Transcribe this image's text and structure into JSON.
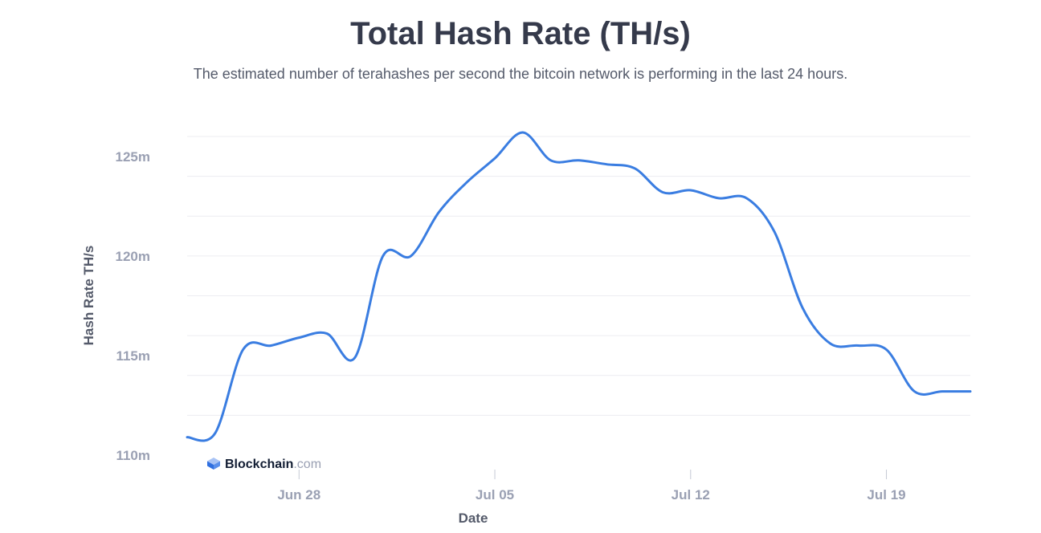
{
  "header": {
    "title": "Total Hash Rate (TH/s)",
    "subtitle": "The estimated number of terahashes per second the bitcoin network is performing in the last 24 hours."
  },
  "brand": {
    "name": "Blockchain",
    "suffix": ".com"
  },
  "colors": {
    "line": "#3a7de1",
    "grid": "#ececf1",
    "tick": "#9aa0b3"
  },
  "chart_data": {
    "type": "line",
    "xlabel": "Date",
    "ylabel": "Hash Rate TH/s",
    "ylim": [
      110,
      126
    ],
    "y_ticks": [
      110,
      115,
      120,
      125
    ],
    "y_tick_labels": [
      "110m",
      "115m",
      "120m",
      "125m"
    ],
    "x_ticks": [
      "2020-06-28",
      "2020-07-05",
      "2020-07-12",
      "2020-07-19"
    ],
    "x_tick_labels": [
      "Jun 28",
      "Jul 05",
      "Jul 12",
      "Jul 19"
    ],
    "xlim": [
      "2020-06-24",
      "2020-07-22"
    ],
    "grid": true,
    "series": [
      {
        "x": [
          "2020-06-24",
          "2020-06-25",
          "2020-06-26",
          "2020-06-27",
          "2020-06-28",
          "2020-06-29",
          "2020-06-30",
          "2020-07-01",
          "2020-07-02",
          "2020-07-03",
          "2020-07-04",
          "2020-07-05",
          "2020-07-06",
          "2020-07-07",
          "2020-07-08",
          "2020-07-09",
          "2020-07-10",
          "2020-07-11",
          "2020-07-12",
          "2020-07-13",
          "2020-07-14",
          "2020-07-15",
          "2020-07-16",
          "2020-07-17",
          "2020-07-18",
          "2020-07-19",
          "2020-07-20",
          "2020-07-21",
          "2020-07-22"
        ],
        "values": [
          110.9,
          111.1,
          115.3,
          115.5,
          115.9,
          116.1,
          114.9,
          120.0,
          120.0,
          122.2,
          123.7,
          124.9,
          126.2,
          124.8,
          124.8,
          124.6,
          124.4,
          123.2,
          123.3,
          122.9,
          122.9,
          121.2,
          117.4,
          115.6,
          115.5,
          115.3,
          113.2,
          113.2,
          113.2
        ]
      }
    ]
  }
}
